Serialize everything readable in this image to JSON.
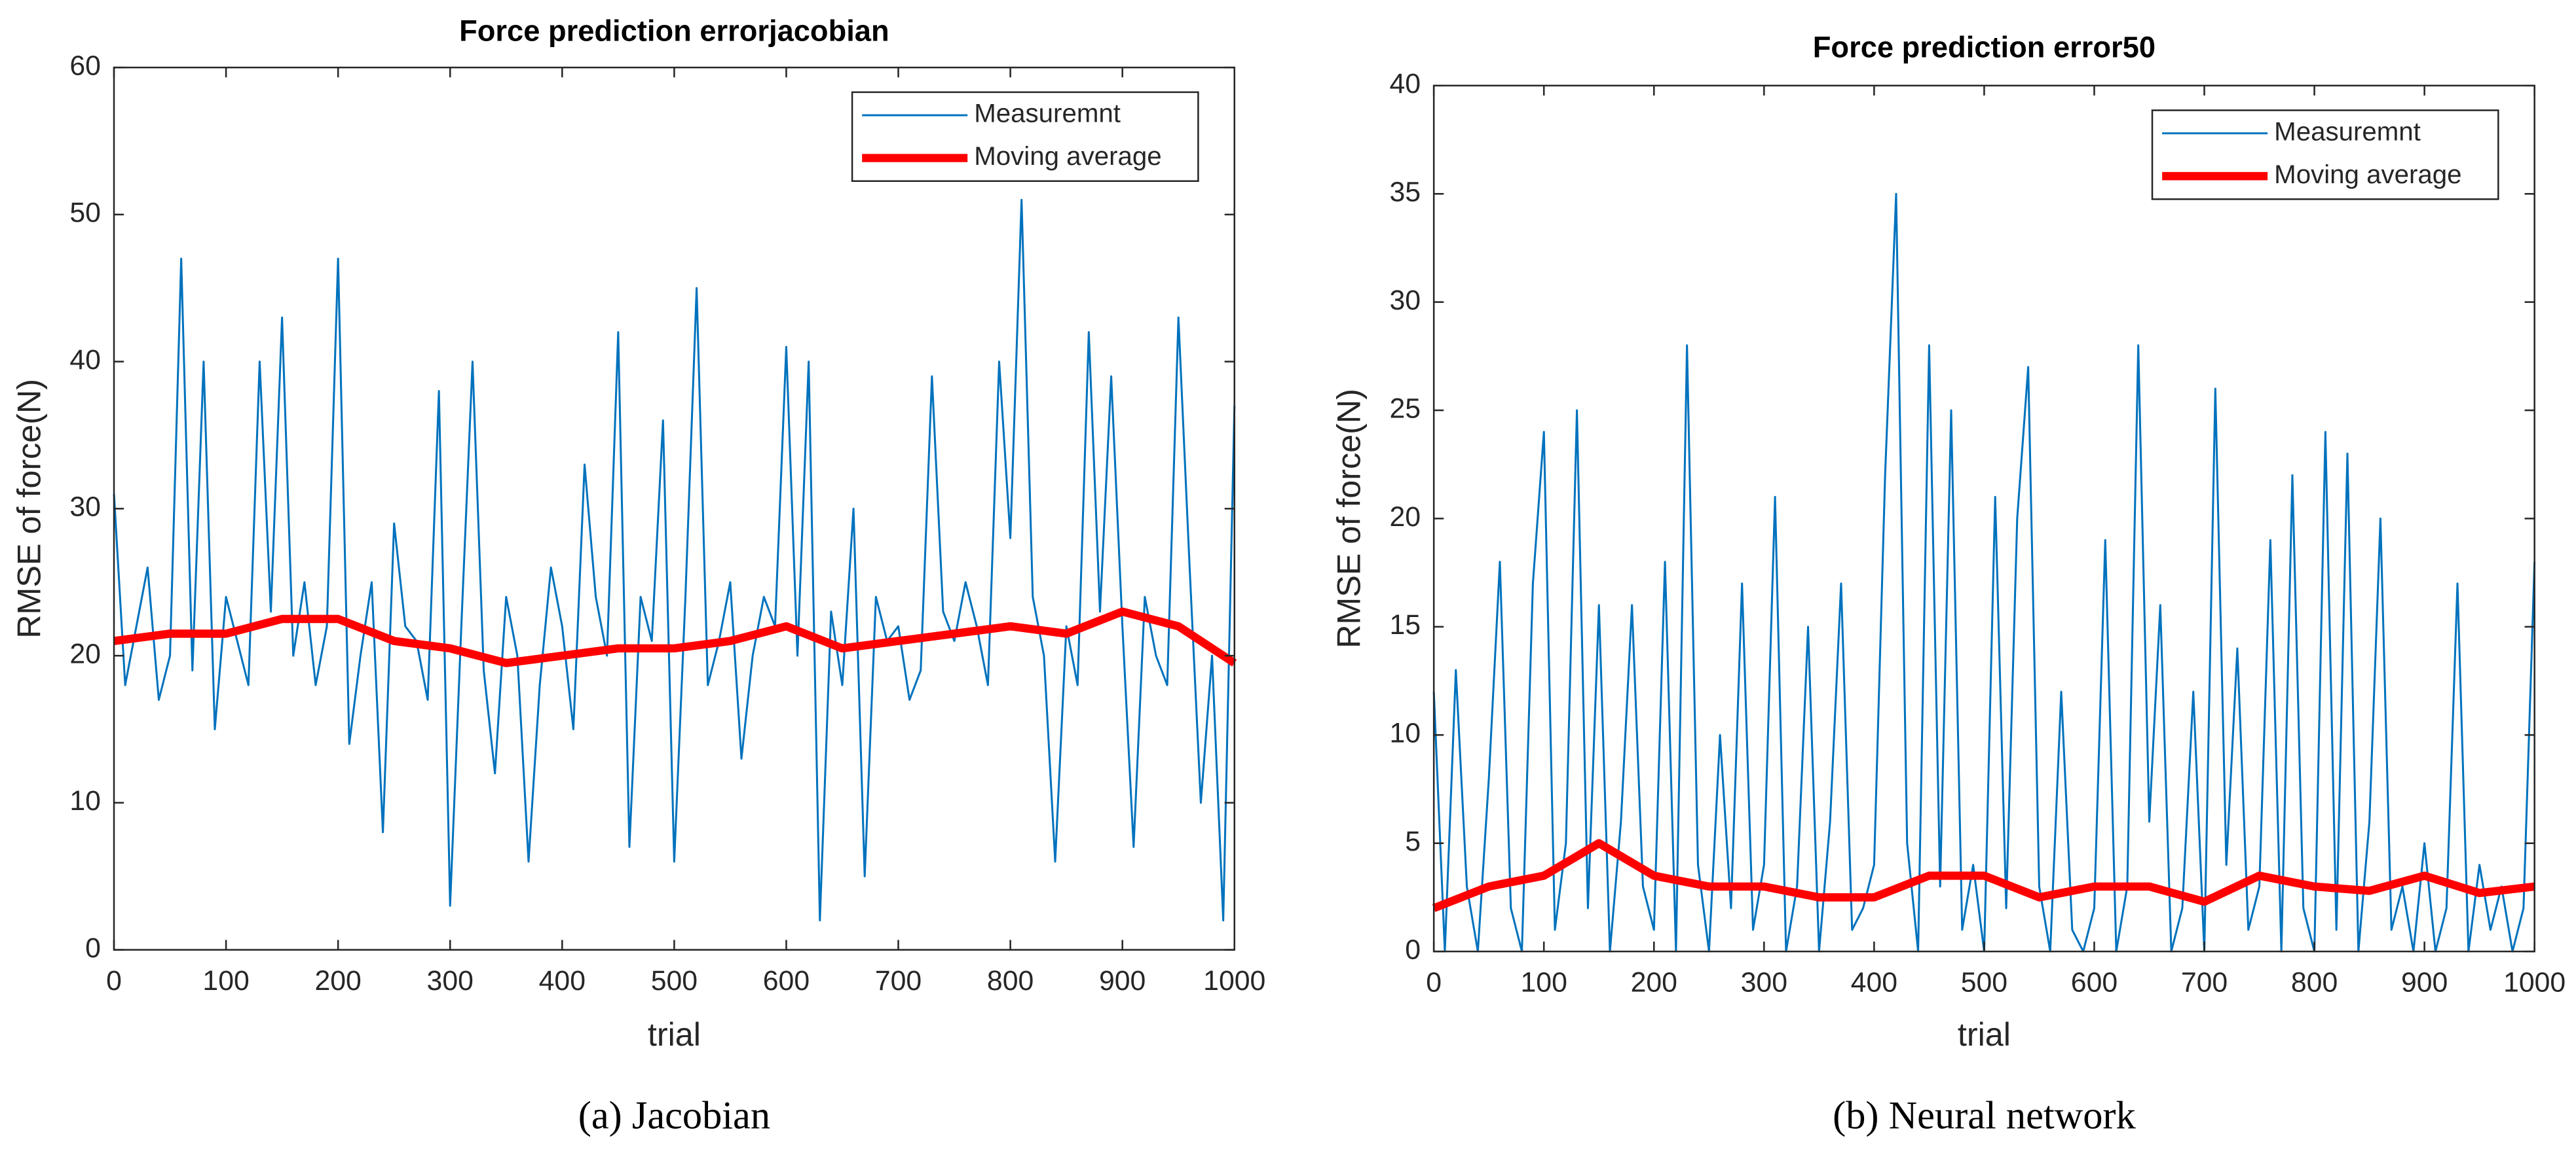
{
  "chart_data": [
    {
      "type": "line",
      "title": "Force prediction errorjacobian",
      "xlabel": "trial",
      "ylabel": "RMSE of force(N)",
      "caption": "(a) Jacobian",
      "xlim": [
        0,
        1000
      ],
      "xticks": [
        0,
        100,
        200,
        300,
        400,
        500,
        600,
        700,
        800,
        900,
        1000
      ],
      "ylim": [
        0,
        60
      ],
      "yticks": [
        0,
        10,
        20,
        30,
        40,
        50,
        60
      ],
      "legend": "upper right",
      "series": [
        {
          "name": "Measuremnt",
          "color": "#0072bd",
          "x": [
            0,
            10,
            20,
            30,
            40,
            50,
            60,
            70,
            80,
            90,
            100,
            110,
            120,
            130,
            140,
            150,
            160,
            170,
            180,
            190,
            200,
            210,
            220,
            230,
            240,
            250,
            260,
            270,
            280,
            290,
            300,
            310,
            320,
            330,
            340,
            350,
            360,
            370,
            380,
            390,
            400,
            410,
            420,
            430,
            440,
            450,
            460,
            470,
            480,
            490,
            500,
            510,
            520,
            530,
            540,
            550,
            560,
            570,
            580,
            590,
            600,
            610,
            620,
            630,
            640,
            650,
            660,
            670,
            680,
            690,
            700,
            710,
            720,
            730,
            740,
            750,
            760,
            770,
            780,
            790,
            800,
            810,
            820,
            830,
            840,
            850,
            860,
            870,
            880,
            890,
            900,
            910,
            920,
            930,
            940,
            950,
            960,
            970,
            980,
            990,
            1000
          ],
          "values": [
            31,
            18,
            22,
            26,
            17,
            20,
            47,
            19,
            40,
            15,
            24,
            21,
            18,
            40,
            23,
            43,
            20,
            25,
            18,
            22,
            47,
            14,
            20,
            25,
            8,
            29,
            22,
            21,
            17,
            38,
            3,
            22,
            40,
            19,
            12,
            24,
            20,
            6,
            18,
            26,
            22,
            15,
            33,
            24,
            20,
            42,
            7,
            24,
            21,
            36,
            6,
            24,
            45,
            18,
            21,
            25,
            13,
            20,
            24,
            22,
            41,
            20,
            40,
            2,
            23,
            18,
            30,
            5,
            24,
            21,
            22,
            17,
            19,
            39,
            23,
            21,
            25,
            22,
            18,
            40,
            28,
            51,
            24,
            20,
            6,
            22,
            18,
            42,
            23,
            39,
            22,
            7,
            24,
            20,
            18,
            43,
            26,
            10,
            20,
            2,
            37
          ]
        },
        {
          "name": "Moving average",
          "color": "#ff0000",
          "x": [
            0,
            50,
            100,
            150,
            200,
            250,
            300,
            350,
            400,
            450,
            500,
            550,
            600,
            650,
            700,
            750,
            800,
            850,
            900,
            950,
            1000
          ],
          "values": [
            21,
            21.5,
            21.5,
            22.5,
            22.5,
            21,
            20.5,
            19.5,
            20,
            20.5,
            20.5,
            21,
            22,
            20.5,
            21,
            21.5,
            22,
            21.5,
            23,
            22,
            19.5
          ]
        }
      ]
    },
    {
      "type": "line",
      "title": "Force prediction error50",
      "xlabel": "trial",
      "ylabel": "RMSE of force(N)",
      "caption": "(b) Neural network",
      "xlim": [
        0,
        1000
      ],
      "xticks": [
        0,
        100,
        200,
        300,
        400,
        500,
        600,
        700,
        800,
        900,
        1000
      ],
      "ylim": [
        0,
        40
      ],
      "yticks": [
        0,
        5,
        10,
        15,
        20,
        25,
        30,
        35,
        40
      ],
      "legend": "upper right",
      "series": [
        {
          "name": "Measuremnt",
          "color": "#0072bd",
          "x": [
            0,
            10,
            20,
            30,
            40,
            50,
            60,
            70,
            80,
            90,
            100,
            110,
            120,
            130,
            140,
            150,
            160,
            170,
            180,
            190,
            200,
            210,
            220,
            230,
            240,
            250,
            260,
            270,
            280,
            290,
            300,
            310,
            320,
            330,
            340,
            350,
            360,
            370,
            380,
            390,
            400,
            410,
            420,
            430,
            440,
            450,
            460,
            470,
            480,
            490,
            500,
            510,
            520,
            530,
            540,
            550,
            560,
            570,
            580,
            590,
            600,
            610,
            620,
            630,
            640,
            650,
            660,
            670,
            680,
            690,
            700,
            710,
            720,
            730,
            740,
            750,
            760,
            770,
            780,
            790,
            800,
            810,
            820,
            830,
            840,
            850,
            860,
            870,
            880,
            890,
            900,
            910,
            920,
            930,
            940,
            950,
            960,
            970,
            980,
            990,
            1000
          ],
          "values": [
            12,
            0,
            13,
            3,
            0,
            8,
            18,
            2,
            0,
            17,
            24,
            1,
            5,
            25,
            2,
            16,
            0,
            6,
            16,
            3,
            1,
            18,
            0,
            28,
            4,
            0,
            10,
            2,
            17,
            1,
            4,
            21,
            0,
            3,
            15,
            0,
            6,
            17,
            1,
            2,
            4,
            22,
            35,
            5,
            0,
            28,
            3,
            25,
            1,
            4,
            0,
            21,
            2,
            20,
            27,
            3,
            0,
            12,
            1,
            0,
            2,
            19,
            0,
            3,
            28,
            6,
            16,
            0,
            2,
            12,
            0,
            26,
            4,
            14,
            1,
            3,
            19,
            0,
            22,
            2,
            0,
            24,
            1,
            23,
            0,
            6,
            20,
            1,
            3,
            0,
            5,
            0,
            2,
            17,
            0,
            4,
            1,
            3,
            0,
            2,
            18
          ]
        },
        {
          "name": "Moving average",
          "color": "#ff0000",
          "x": [
            0,
            50,
            100,
            150,
            200,
            250,
            300,
            350,
            400,
            450,
            500,
            550,
            600,
            650,
            700,
            750,
            800,
            850,
            900,
            950,
            1000
          ],
          "values": [
            2,
            3,
            3.5,
            5,
            3.5,
            3,
            3,
            2.5,
            2.5,
            3.5,
            3.5,
            2.5,
            3,
            3,
            2.3,
            3.5,
            3,
            2.8,
            3.5,
            2.7,
            3
          ]
        }
      ]
    }
  ]
}
